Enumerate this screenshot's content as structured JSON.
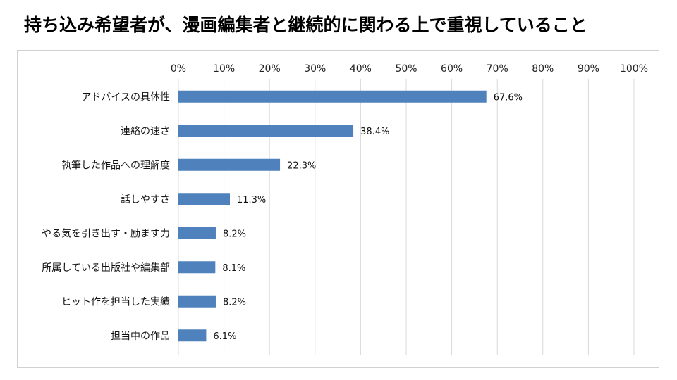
{
  "title": "持ち込み希望者が、漫画編集者と継続的に関わる上で重視していること",
  "chart_data": {
    "type": "bar",
    "orientation": "horizontal",
    "categories": [
      "アドバイスの具体性",
      "連絡の速さ",
      "執筆した作品への理解度",
      "話しやすさ",
      "やる気を引き出す・励ます力",
      "所属している出版社や編集部",
      "ヒット作を担当した実績",
      "担当中の作品"
    ],
    "values": [
      67.6,
      38.4,
      22.3,
      11.3,
      8.2,
      8.1,
      8.2,
      6.1
    ],
    "value_labels": [
      "67.6%",
      "38.4%",
      "22.3%",
      "11.3%",
      "8.2%",
      "8.1%",
      "8.2%",
      "6.1%"
    ],
    "xlim": [
      0,
      100
    ],
    "x_ticks": [
      "0%",
      "10%",
      "20%",
      "30%",
      "40%",
      "50%",
      "60%",
      "70%",
      "80%",
      "90%",
      "100%"
    ],
    "x_axis_position": "top",
    "grid": true,
    "colors": {
      "bar": "#4f81bd",
      "grid": "#d9d9d9"
    }
  }
}
